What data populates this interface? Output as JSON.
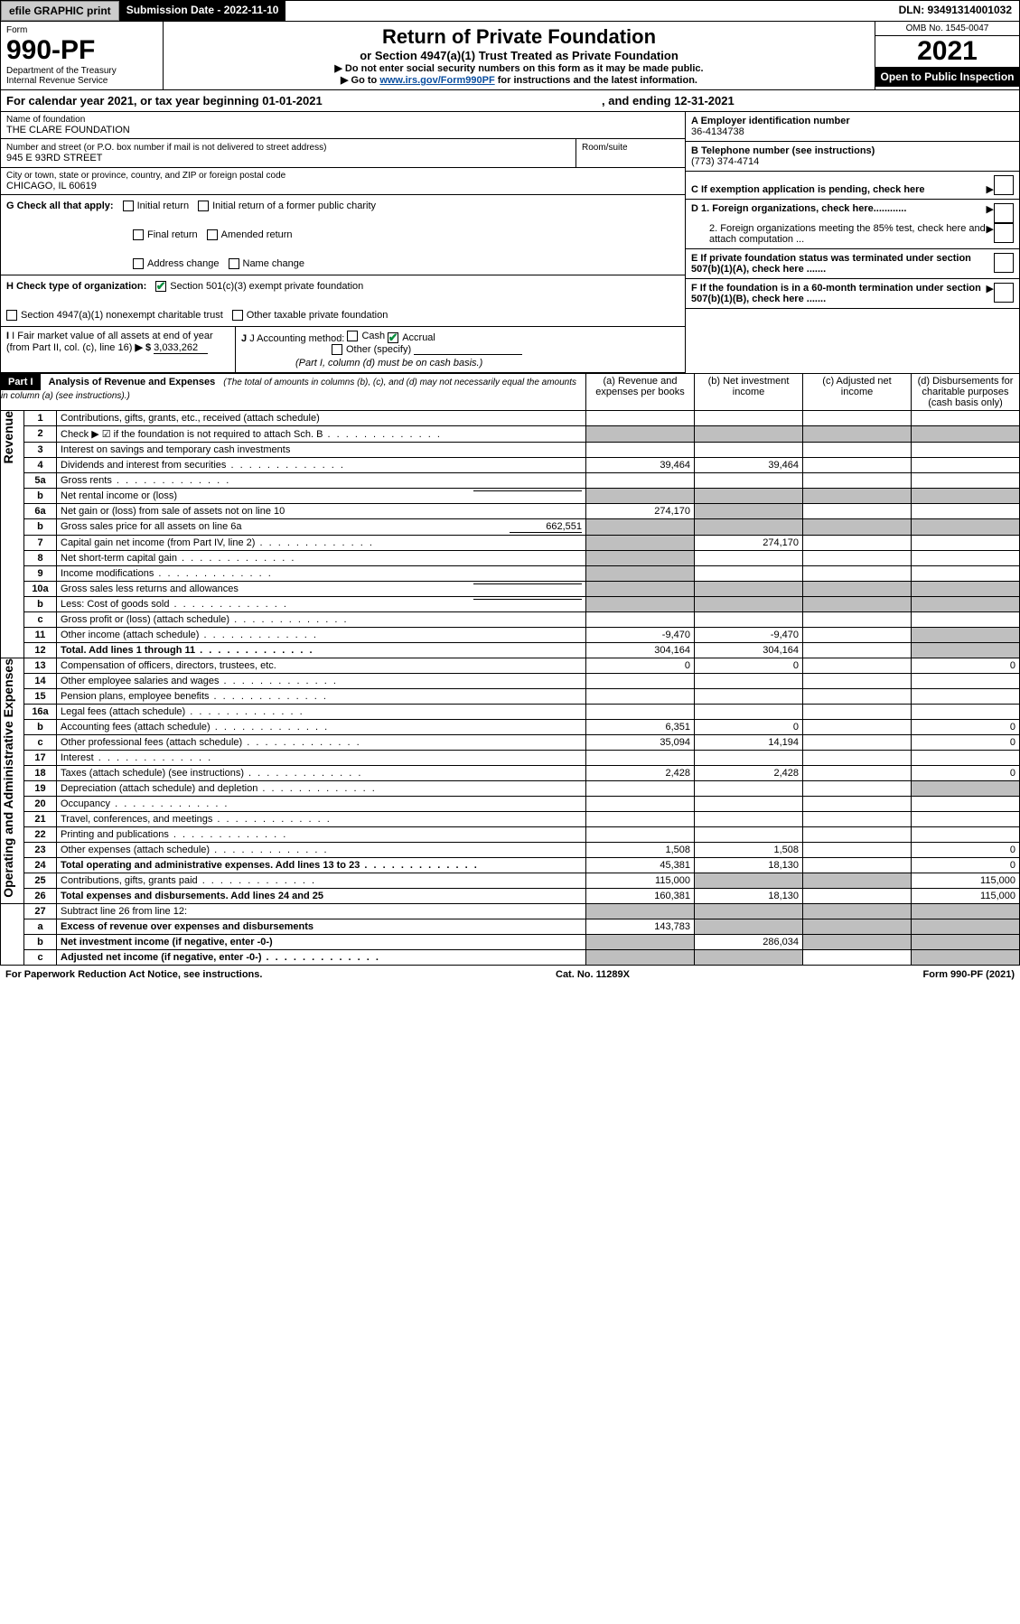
{
  "topbar": {
    "efile": "efile GRAPHIC print",
    "subdate_label": "Submission Date - 2022-11-10",
    "dln": "DLN: 93491314001032"
  },
  "header": {
    "form_label": "Form",
    "form_no": "990-PF",
    "dept": "Department of the Treasury",
    "irs": "Internal Revenue Service",
    "title": "Return of Private Foundation",
    "subtitle": "or Section 4947(a)(1) Trust Treated as Private Foundation",
    "note1": "▶ Do not enter social security numbers on this form as it may be made public.",
    "note2_pre": "▶ Go to ",
    "note2_link": "www.irs.gov/Form990PF",
    "note2_post": " for instructions and the latest information.",
    "omb": "OMB No. 1545-0047",
    "year": "2021",
    "opentag": "Open to Public Inspection"
  },
  "calyear": {
    "pre": "For calendar year 2021, or tax year beginning 01-01-2021",
    "end": ", and ending 12-31-2021"
  },
  "info": {
    "name_label": "Name of foundation",
    "name": "THE CLARE FOUNDATION",
    "addr_label": "Number and street (or P.O. box number if mail is not delivered to street address)",
    "room_label": "Room/suite",
    "addr": "945 E 93RD STREET",
    "city_label": "City or town, state or province, country, and ZIP or foreign postal code",
    "city": "CHICAGO, IL  60619",
    "a_label": "A Employer identification number",
    "a_val": "36-4134738",
    "b_label": "B Telephone number (see instructions)",
    "b_val": "(773) 374-4714",
    "c_label": "C If exemption application is pending, check here",
    "d1": "D 1. Foreign organizations, check here............",
    "d2": "2. Foreign organizations meeting the 85% test, check here and attach computation ...",
    "e": "E  If private foundation status was terminated under section 507(b)(1)(A), check here .......",
    "f": "F  If the foundation is in a 60-month termination under section 507(b)(1)(B), check here .......",
    "g_label": "G Check all that apply:",
    "g_opts": [
      "Initial return",
      "Initial return of a former public charity",
      "Final return",
      "Amended return",
      "Address change",
      "Name change"
    ],
    "h_label": "H Check type of organization:",
    "h1": "Section 501(c)(3) exempt private foundation",
    "h2": "Section 4947(a)(1) nonexempt charitable trust",
    "h3": "Other taxable private foundation",
    "i_label": "I Fair market value of all assets at end of year (from Part II, col. (c), line 16)",
    "i_val": "3,033,262",
    "j_label": "J Accounting method:",
    "j_cash": "Cash",
    "j_accr": "Accrual",
    "j_other": "Other (specify)",
    "j_note": "(Part I, column (d) must be on cash basis.)"
  },
  "part1": {
    "label": "Part I",
    "title": "Analysis of Revenue and Expenses",
    "desc": "(The total of amounts in columns (b), (c), and (d) may not necessarily equal the amounts in column (a) (see instructions).)",
    "col_a": "(a) Revenue and expenses per books",
    "col_b": "(b) Net investment income",
    "col_c": "(c) Adjusted net income",
    "col_d": "(d) Disbursements for charitable purposes (cash basis only)"
  },
  "sidelabels": {
    "rev": "Revenue",
    "exp": "Operating and Administrative Expenses"
  },
  "rows": [
    {
      "n": "1",
      "d": "Contributions, gifts, grants, etc., received (attach schedule)"
    },
    {
      "n": "2",
      "d": "Check ▶ ☑ if the foundation is not required to attach Sch. B",
      "dotted": true
    },
    {
      "n": "3",
      "d": "Interest on savings and temporary cash investments"
    },
    {
      "n": "4",
      "d": "Dividends and interest from securities",
      "dotted": true,
      "a": "39,464",
      "b": "39,464"
    },
    {
      "n": "5a",
      "d": "Gross rents",
      "dotted": true
    },
    {
      "n": "b",
      "d": "Net rental income or (loss)",
      "inline": true
    },
    {
      "n": "6a",
      "d": "Net gain or (loss) from sale of assets not on line 10",
      "a": "274,170"
    },
    {
      "n": "b",
      "d": "Gross sales price for all assets on line 6a",
      "inline_val": "662,551"
    },
    {
      "n": "7",
      "d": "Capital gain net income (from Part IV, line 2)",
      "dotted": true,
      "b": "274,170"
    },
    {
      "n": "8",
      "d": "Net short-term capital gain",
      "dotted": true
    },
    {
      "n": "9",
      "d": "Income modifications",
      "dotted": true
    },
    {
      "n": "10a",
      "d": "Gross sales less returns and allowances",
      "inline": true
    },
    {
      "n": "b",
      "d": "Less: Cost of goods sold",
      "dotted": true,
      "inline": true
    },
    {
      "n": "c",
      "d": "Gross profit or (loss) (attach schedule)",
      "dotted": true
    },
    {
      "n": "11",
      "d": "Other income (attach schedule)",
      "dotted": true,
      "a": "-9,470",
      "b": "-9,470"
    },
    {
      "n": "12",
      "d": "Total. Add lines 1 through 11",
      "dotted": true,
      "bold": true,
      "a": "304,164",
      "b": "304,164"
    },
    {
      "n": "13",
      "d": "Compensation of officers, directors, trustees, etc.",
      "a": "0",
      "b": "0",
      "dd": "0"
    },
    {
      "n": "14",
      "d": "Other employee salaries and wages",
      "dotted": true
    },
    {
      "n": "15",
      "d": "Pension plans, employee benefits",
      "dotted": true
    },
    {
      "n": "16a",
      "d": "Legal fees (attach schedule)",
      "dotted": true
    },
    {
      "n": "b",
      "d": "Accounting fees (attach schedule)",
      "dotted": true,
      "a": "6,351",
      "b": "0",
      "dd": "0"
    },
    {
      "n": "c",
      "d": "Other professional fees (attach schedule)",
      "dotted": true,
      "a": "35,094",
      "b": "14,194",
      "dd": "0"
    },
    {
      "n": "17",
      "d": "Interest",
      "dotted": true
    },
    {
      "n": "18",
      "d": "Taxes (attach schedule) (see instructions)",
      "dotted": true,
      "a": "2,428",
      "b": "2,428",
      "dd": "0"
    },
    {
      "n": "19",
      "d": "Depreciation (attach schedule) and depletion",
      "dotted": true
    },
    {
      "n": "20",
      "d": "Occupancy",
      "dotted": true
    },
    {
      "n": "21",
      "d": "Travel, conferences, and meetings",
      "dotted": true
    },
    {
      "n": "22",
      "d": "Printing and publications",
      "dotted": true
    },
    {
      "n": "23",
      "d": "Other expenses (attach schedule)",
      "dotted": true,
      "a": "1,508",
      "b": "1,508",
      "dd": "0"
    },
    {
      "n": "24",
      "d": "Total operating and administrative expenses. Add lines 13 to 23",
      "dotted": true,
      "bold": true,
      "a": "45,381",
      "b": "18,130",
      "dd": "0"
    },
    {
      "n": "25",
      "d": "Contributions, gifts, grants paid",
      "dotted": true,
      "a": "115,000",
      "dd": "115,000"
    },
    {
      "n": "26",
      "d": "Total expenses and disbursements. Add lines 24 and 25",
      "bold": true,
      "a": "160,381",
      "b": "18,130",
      "dd": "115,000"
    },
    {
      "n": "27",
      "d": "Subtract line 26 from line 12:"
    },
    {
      "n": "a",
      "d": "Excess of revenue over expenses and disbursements",
      "bold": true,
      "a": "143,783"
    },
    {
      "n": "b",
      "d": "Net investment income (if negative, enter -0-)",
      "bold": true,
      "b": "286,034"
    },
    {
      "n": "c",
      "d": "Adjusted net income (if negative, enter -0-)",
      "bold": true,
      "dotted": true
    }
  ],
  "footer": {
    "left": "For Paperwork Reduction Act Notice, see instructions.",
    "mid": "Cat. No. 11289X",
    "right": "Form 990-PF (2021)"
  },
  "gray_cells": {
    "row2": [
      "a",
      "b",
      "c",
      "d"
    ],
    "row5b": [
      "a",
      "b",
      "c",
      "d"
    ],
    "row6a": [
      "b"
    ],
    "row6b": [
      "a",
      "b",
      "c",
      "d"
    ],
    "row7": [
      "a"
    ],
    "row8": [
      "a"
    ],
    "row9": [
      "a"
    ],
    "row10ab": [
      "a",
      "b",
      "c",
      "d"
    ],
    "row11": [
      "d"
    ],
    "row12": [
      "d"
    ],
    "row19": [
      "d"
    ],
    "row25": [
      "b",
      "c"
    ],
    "row27": [
      "a",
      "b",
      "c",
      "d"
    ],
    "rowa": [
      "b",
      "c",
      "d"
    ],
    "rowb": [
      "a",
      "c",
      "d"
    ],
    "rowc": [
      "a",
      "b",
      "d"
    ]
  }
}
